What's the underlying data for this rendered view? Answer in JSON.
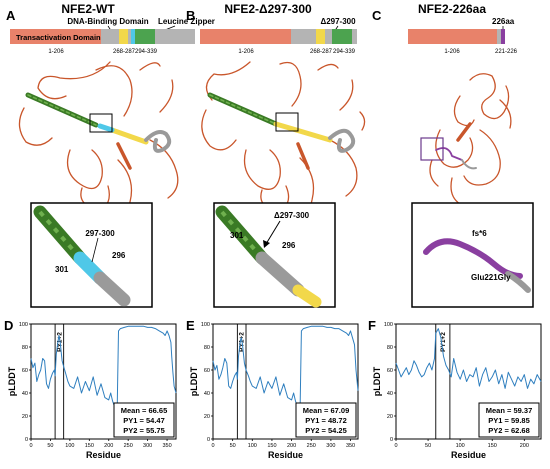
{
  "panels": [
    {
      "letter": "A",
      "title": "NFE2-WT",
      "domain_labels": {
        "transactivation": "Transactivation Domain",
        "dna_binding": "DNA-Binding Domain",
        "leucine_zipper": "Leucine Zipper"
      },
      "ranges": [
        "1-206",
        "268-287",
        "294-339"
      ],
      "inset_labels": [
        "297-300",
        "301",
        "296"
      ]
    },
    {
      "letter": "B",
      "title": "NFE2-Δ297-300",
      "deletion_label": "Δ297-300",
      "ranges": [
        "1-206",
        "268-287",
        "294-339"
      ],
      "inset_labels": [
        "Δ297-300",
        "301",
        "296"
      ]
    },
    {
      "letter": "C",
      "title": "NFE2-226aa",
      "length_label": "226aa",
      "ranges": [
        "1-206",
        "221-226"
      ],
      "inset_labels": [
        "fs*6",
        "Glu221Gly"
      ]
    }
  ],
  "colors": {
    "transactivation": "#E8826A",
    "gray_domain": "#B4B4B4",
    "dna_binding_yellow": "#F2D84A",
    "leucine_zipper_green": "#4CA34F",
    "cyan": "#4FC8E8",
    "frameshift_purple": "#8A3FA0",
    "plddt_line": "#2F7FBF",
    "structure_coil": "#C9562B",
    "helix_green": "#3A7A25"
  },
  "chart_data": [
    {
      "type": "line",
      "panel": "D",
      "xlabel": "Residue",
      "ylabel": "pLDDT",
      "xticks": [
        0,
        50,
        100,
        150,
        200,
        250,
        300,
        350
      ],
      "yticks": [
        0,
        20,
        40,
        60,
        80,
        100
      ],
      "xlim": [
        0,
        373
      ],
      "ylim": [
        0,
        100
      ],
      "markers": {
        "x": [
          62,
          84
        ],
        "label": "PY1+2"
      },
      "stats": {
        "mean": "Mean = 66.65",
        "py1": "PY1 = 54.47",
        "py2": "PY2 = 55.75"
      },
      "x": [
        0,
        5,
        10,
        15,
        20,
        25,
        30,
        35,
        40,
        45,
        50,
        55,
        60,
        62,
        65,
        70,
        72,
        75,
        80,
        84,
        90,
        95,
        100,
        110,
        120,
        130,
        140,
        150,
        160,
        170,
        180,
        190,
        200,
        205,
        210,
        215,
        220,
        222,
        225,
        230,
        240,
        250,
        260,
        270,
        280,
        290,
        300,
        310,
        320,
        330,
        340,
        345,
        350,
        355,
        360,
        362,
        365,
        368,
        373
      ],
      "y": [
        70,
        62,
        66,
        50,
        56,
        60,
        70,
        68,
        48,
        44,
        52,
        57,
        60,
        55,
        74,
        86,
        90,
        84,
        68,
        63,
        56,
        50,
        46,
        44,
        54,
        40,
        50,
        42,
        54,
        38,
        48,
        36,
        34,
        40,
        33,
        28,
        24,
        32,
        94,
        96,
        97,
        98,
        98,
        98,
        98,
        98,
        97,
        97,
        96,
        94,
        92,
        90,
        94,
        90,
        84,
        72,
        58,
        46,
        40
      ]
    },
    {
      "type": "line",
      "panel": "E",
      "xlabel": "Residue",
      "ylabel": "pLDDT",
      "xticks": [
        0,
        50,
        100,
        150,
        200,
        250,
        300,
        350
      ],
      "yticks": [
        0,
        20,
        40,
        60,
        80,
        100
      ],
      "xlim": [
        0,
        369
      ],
      "ylim": [
        0,
        100
      ],
      "markers": {
        "x": [
          62,
          84
        ],
        "label": "PY1+2"
      },
      "stats": {
        "mean": "Mean = 67.09",
        "py1": "PY1 = 48.72",
        "py2": "PY2 = 54.25"
      },
      "x": [
        0,
        5,
        10,
        15,
        20,
        25,
        30,
        35,
        40,
        45,
        50,
        55,
        60,
        62,
        65,
        70,
        72,
        75,
        80,
        84,
        90,
        95,
        100,
        110,
        120,
        130,
        140,
        150,
        160,
        170,
        180,
        190,
        200,
        205,
        210,
        215,
        220,
        222,
        225,
        230,
        240,
        250,
        260,
        270,
        280,
        290,
        300,
        310,
        320,
        330,
        340,
        345,
        350,
        355,
        360,
        364,
        369
      ],
      "y": [
        68,
        60,
        64,
        52,
        56,
        62,
        70,
        66,
        46,
        44,
        50,
        55,
        58,
        52,
        72,
        86,
        88,
        82,
        66,
        60,
        55,
        50,
        46,
        44,
        54,
        40,
        50,
        44,
        54,
        38,
        48,
        36,
        34,
        40,
        33,
        28,
        25,
        32,
        94,
        96,
        97,
        98,
        98,
        98,
        98,
        97,
        97,
        96,
        96,
        94,
        92,
        90,
        94,
        88,
        82,
        60,
        42
      ]
    },
    {
      "type": "line",
      "panel": "F",
      "xlabel": "Residue",
      "ylabel": "pLDDT",
      "xticks": [
        0,
        50,
        100,
        150,
        200
      ],
      "yticks": [
        0,
        20,
        40,
        60,
        80,
        100
      ],
      "xlim": [
        0,
        226
      ],
      "ylim": [
        0,
        100
      ],
      "markers": {
        "x": [
          62,
          84
        ],
        "label": "PY1+2"
      },
      "stats": {
        "mean": "Mean = 59.37",
        "py1": "PY1 = 59.85",
        "py2": "PY2 = 62.68"
      },
      "x": [
        0,
        4,
        8,
        12,
        16,
        20,
        24,
        28,
        32,
        36,
        40,
        44,
        48,
        52,
        56,
        60,
        62,
        66,
        70,
        74,
        78,
        82,
        86,
        90,
        95,
        100,
        105,
        110,
        115,
        120,
        125,
        130,
        135,
        140,
        145,
        150,
        155,
        160,
        165,
        170,
        175,
        180,
        185,
        190,
        195,
        200,
        205,
        210,
        215,
        220,
        226
      ],
      "y": [
        66,
        60,
        54,
        58,
        62,
        56,
        60,
        68,
        64,
        58,
        54,
        56,
        62,
        66,
        60,
        70,
        92,
        96,
        88,
        72,
        64,
        60,
        54,
        70,
        58,
        52,
        60,
        50,
        56,
        54,
        62,
        46,
        56,
        62,
        50,
        54,
        60,
        48,
        56,
        44,
        58,
        52,
        46,
        54,
        50,
        56,
        44,
        52,
        48,
        56,
        50
      ]
    }
  ]
}
